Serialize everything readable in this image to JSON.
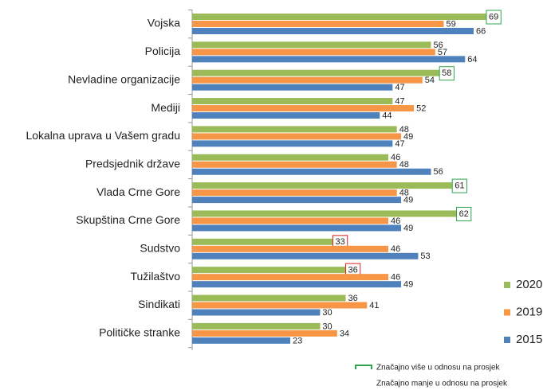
{
  "chart_data": {
    "type": "bar",
    "orientation": "horizontal",
    "categories": [
      "Vojska",
      "Policija",
      "Nevladine organizacije",
      "Mediji",
      "Lokalna uprava u Vašem gradu",
      "Predsjednik države",
      "Vlada Crne Gore",
      "Skupština Crne Gore",
      "Sudstvo",
      "Tužilaštvo",
      "Sindikati",
      "Političke stranke"
    ],
    "series": [
      {
        "name": "2020",
        "color": "#9bbb59",
        "values": [
          69,
          56,
          58,
          47,
          48,
          46,
          61,
          62,
          33,
          36,
          36,
          30
        ],
        "marked": [
          0,
          null,
          0,
          null,
          null,
          null,
          0,
          0,
          1,
          1,
          null,
          null
        ]
      },
      {
        "name": "2019",
        "color": "#f79646",
        "values": [
          59,
          57,
          54,
          52,
          49,
          48,
          48,
          46,
          46,
          46,
          41,
          34
        ]
      },
      {
        "name": "2015",
        "color": "#4f81bd",
        "values": [
          66,
          64,
          47,
          44,
          47,
          56,
          49,
          49,
          53,
          49,
          30,
          23
        ]
      }
    ],
    "notes": [
      {
        "text": "Značajno više u odnosu na prosjek",
        "color": "#2ea44f"
      },
      {
        "text": "Značajno manje u odnosu na prosjek",
        "color": "#e02020"
      }
    ],
    "legend": "right"
  }
}
